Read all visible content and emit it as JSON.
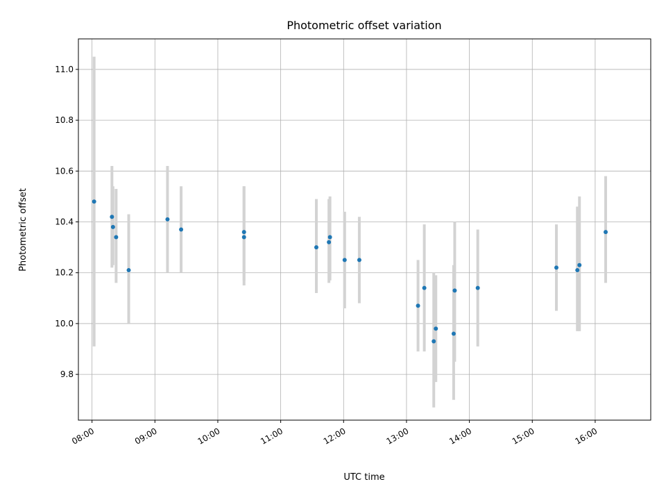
{
  "chart_data": {
    "type": "scatter",
    "title": "Photometric offset variation",
    "xlabel": "UTC time",
    "ylabel": "Photometric offset",
    "x_tick_labels": [
      "08:00",
      "09:00",
      "10:00",
      "11:00",
      "12:00",
      "13:00",
      "14:00",
      "15:00",
      "16:00"
    ],
    "y_tick_labels": [
      "9.8",
      "10.0",
      "10.2",
      "10.4",
      "10.6",
      "10.8",
      "11.0"
    ],
    "xlim": [
      "07:47",
      "16:53"
    ],
    "ylim": [
      9.62,
      11.12
    ],
    "grid": true,
    "error_bar_color": "#d3d3d3",
    "point_color": "#1f77b4",
    "series": [
      {
        "points": [
          {
            "x": "08:02",
            "y": 10.48,
            "ylow": 9.91,
            "yhigh": 11.05
          },
          {
            "x": "08:19",
            "y": 10.42,
            "ylow": 10.22,
            "yhigh": 10.62
          },
          {
            "x": "08:20",
            "y": 10.38,
            "ylow": 10.23,
            "yhigh": 10.54
          },
          {
            "x": "08:23",
            "y": 10.34,
            "ylow": 10.16,
            "yhigh": 10.53
          },
          {
            "x": "08:35",
            "y": 10.21,
            "ylow": 10.0,
            "yhigh": 10.43
          },
          {
            "x": "09:12",
            "y": 10.41,
            "ylow": 10.2,
            "yhigh": 10.62
          },
          {
            "x": "09:25",
            "y": 10.37,
            "ylow": 10.2,
            "yhigh": 10.54
          },
          {
            "x": "10:25",
            "y": 10.34,
            "ylow": 10.15,
            "yhigh": 10.54
          },
          {
            "x": "10:25",
            "y": 10.36,
            "ylow": 10.17,
            "yhigh": 10.54
          },
          {
            "x": "11:34",
            "y": 10.3,
            "ylow": 10.12,
            "yhigh": 10.49
          },
          {
            "x": "11:46",
            "y": 10.32,
            "ylow": 10.16,
            "yhigh": 10.49
          },
          {
            "x": "11:47",
            "y": 10.34,
            "ylow": 10.17,
            "yhigh": 10.5
          },
          {
            "x": "12:01",
            "y": 10.25,
            "ylow": 10.06,
            "yhigh": 10.44
          },
          {
            "x": "12:15",
            "y": 10.25,
            "ylow": 10.08,
            "yhigh": 10.42
          },
          {
            "x": "13:11",
            "y": 10.07,
            "ylow": 9.89,
            "yhigh": 10.25
          },
          {
            "x": "13:17",
            "y": 10.14,
            "ylow": 9.89,
            "yhigh": 10.39
          },
          {
            "x": "13:26",
            "y": 9.93,
            "ylow": 9.67,
            "yhigh": 10.2
          },
          {
            "x": "13:28",
            "y": 9.98,
            "ylow": 9.77,
            "yhigh": 10.19
          },
          {
            "x": "13:45",
            "y": 9.96,
            "ylow": 9.7,
            "yhigh": 10.23
          },
          {
            "x": "13:46",
            "y": 10.13,
            "ylow": 9.85,
            "yhigh": 10.4
          },
          {
            "x": "14:08",
            "y": 10.14,
            "ylow": 9.91,
            "yhigh": 10.37
          },
          {
            "x": "15:23",
            "y": 10.22,
            "ylow": 10.05,
            "yhigh": 10.39
          },
          {
            "x": "15:43",
            "y": 10.21,
            "ylow": 9.97,
            "yhigh": 10.46
          },
          {
            "x": "15:45",
            "y": 10.23,
            "ylow": 9.97,
            "yhigh": 10.5
          },
          {
            "x": "16:10",
            "y": 10.36,
            "ylow": 10.16,
            "yhigh": 10.58
          }
        ]
      }
    ]
  }
}
